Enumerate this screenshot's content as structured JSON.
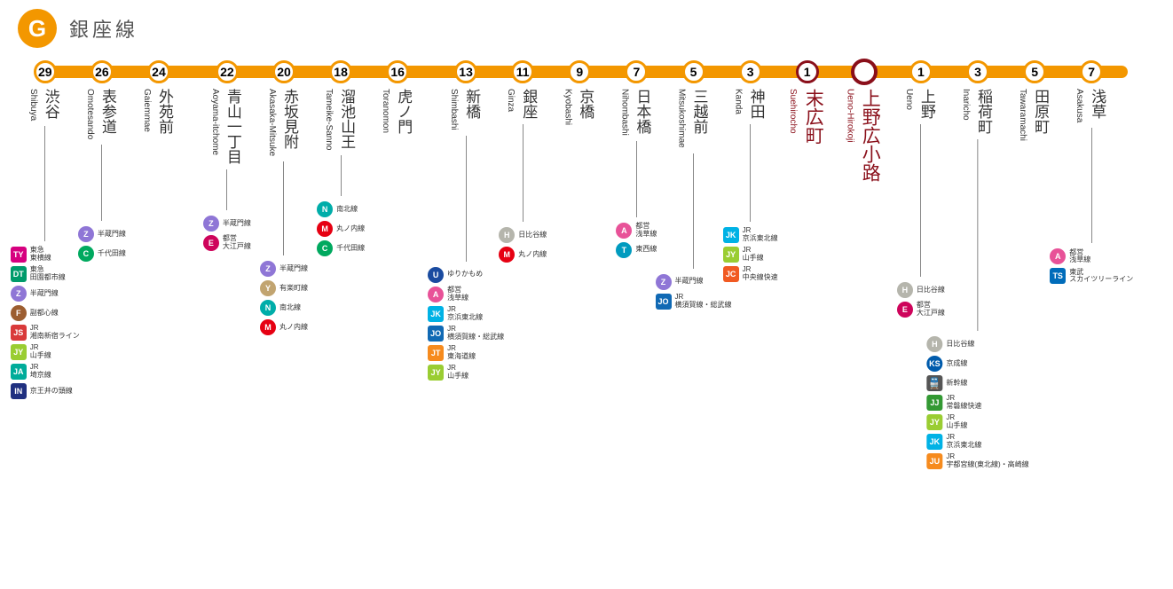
{
  "line": {
    "letter": "G",
    "name": "銀座線",
    "color": "#f39700",
    "highlight_border": "#8a0f1a"
  },
  "strip": {
    "left_pct": 2.4,
    "right_pct": 97.6
  },
  "stations": [
    {
      "num": "29",
      "x": 2.4,
      "ja": "渋谷",
      "en": "Shibuya",
      "gap": 130,
      "tf": [
        {
          "code": "TY",
          "shape": "square",
          "bg": "#d6007f",
          "label": "東急\n東横線"
        },
        {
          "code": "DT",
          "shape": "square",
          "bg": "#009b6b",
          "label": "東急\n田園都市線"
        },
        {
          "code": "Z",
          "shape": "circle",
          "bg": "#8f76d6",
          "label": "半蔵門線"
        },
        {
          "code": "F",
          "shape": "circle",
          "bg": "#9c5e31",
          "label": "副都心線"
        },
        {
          "code": "JS",
          "shape": "square",
          "bg": "#d93a3a",
          "label": "JR\n湘南新宿ライン"
        },
        {
          "code": "JY",
          "shape": "square",
          "bg": "#9acd32",
          "label": "JR\n山手線"
        },
        {
          "code": "JA",
          "shape": "square",
          "bg": "#00ac9a",
          "label": "JR\n埼京線"
        },
        {
          "code": "IN",
          "shape": "square",
          "bg": "#203080",
          "label": "京王井の頭線"
        }
      ]
    },
    {
      "num": "26",
      "x": 7.4,
      "ja": "表参道",
      "en": "Omotesando",
      "gap": 86,
      "tf": [
        {
          "code": "Z",
          "shape": "circle",
          "bg": "#8f76d6",
          "label": "半蔵門線"
        },
        {
          "code": "C",
          "shape": "circle",
          "bg": "#00a95f",
          "label": "千代田線"
        }
      ]
    },
    {
      "num": "24",
      "x": 12.4,
      "ja": "外苑前",
      "en": "Gaiemmae",
      "gap": 0,
      "tf": []
    },
    {
      "num": "22",
      "x": 18.4,
      "ja": "青山一丁目",
      "en": "Aoyama-itchome",
      "gap": 46,
      "tf": [
        {
          "code": "Z",
          "shape": "circle",
          "bg": "#8f76d6",
          "label": "半蔵門線"
        },
        {
          "code": "E",
          "shape": "circle",
          "bg": "#ce045b",
          "label": "都営\n大江戸線"
        }
      ]
    },
    {
      "num": "20",
      "x": 23.4,
      "ja": "赤坂見附",
      "en": "Akasaka-Mitsuke",
      "gap": 106,
      "tf": [
        {
          "code": "Z",
          "shape": "circle",
          "bg": "#8f76d6",
          "label": "半蔵門線"
        },
        {
          "code": "Y",
          "shape": "circle",
          "bg": "#c1a470",
          "label": "有楽町線"
        },
        {
          "code": "N",
          "shape": "circle",
          "bg": "#00ada9",
          "label": "南北線"
        },
        {
          "code": "M",
          "shape": "circle",
          "bg": "#e60012",
          "label": "丸ノ内線"
        }
      ]
    },
    {
      "num": "18",
      "x": 28.4,
      "ja": "溜池山王",
      "en": "Tameike-Sanno",
      "gap": 46,
      "tf": [
        {
          "code": "N",
          "shape": "circle",
          "bg": "#00ada9",
          "label": "南北線"
        },
        {
          "code": "M",
          "shape": "circle",
          "bg": "#e60012",
          "label": "丸ノ内線"
        },
        {
          "code": "C",
          "shape": "circle",
          "bg": "#00a95f",
          "label": "千代田線"
        }
      ]
    },
    {
      "num": "16",
      "x": 33.4,
      "ja": "虎ノ門",
      "en": "Toranomon",
      "gap": 0,
      "tf": []
    },
    {
      "num": "13",
      "x": 39.4,
      "ja": "新橋",
      "en": "Shimbashi",
      "gap": 142,
      "tf": [
        {
          "code": "U",
          "shape": "circle",
          "bg": "#1a4ba0",
          "label": "ゆりかもめ"
        },
        {
          "code": "A",
          "shape": "circle",
          "bg": "#e85298",
          "label": "都営\n浅草線"
        },
        {
          "code": "JK",
          "shape": "square",
          "bg": "#00b2e5",
          "label": "JR\n京浜東北線"
        },
        {
          "code": "JO",
          "shape": "square",
          "bg": "#1069b4",
          "label": "JR\n横須賀線・総武線"
        },
        {
          "code": "JT",
          "shape": "square",
          "bg": "#f68b1e",
          "label": "JR\n東海道線"
        },
        {
          "code": "JY",
          "shape": "square",
          "bg": "#9acd32",
          "label": "JR\n山手線"
        }
      ]
    },
    {
      "num": "11",
      "x": 44.4,
      "ja": "銀座",
      "en": "Ginza",
      "gap": 110,
      "tf": [
        {
          "code": "H",
          "shape": "circle",
          "bg": "#b5b5ac",
          "label": "日比谷線"
        },
        {
          "code": "M",
          "shape": "circle",
          "bg": "#e60012",
          "label": "丸ノ内線"
        }
      ]
    },
    {
      "num": "9",
      "x": 49.4,
      "ja": "京橋",
      "en": "Kyobashi",
      "gap": 0,
      "tf": []
    },
    {
      "num": "7",
      "x": 54.4,
      "ja": "日本橋",
      "en": "Nihombashi",
      "gap": 86,
      "tf": [
        {
          "code": "A",
          "shape": "circle",
          "bg": "#e85298",
          "label": "都営\n浅草線"
        },
        {
          "code": "T",
          "shape": "circle",
          "bg": "#009bbf",
          "label": "東西線"
        }
      ]
    },
    {
      "num": "5",
      "x": 59.4,
      "ja": "三越前",
      "en": "Mitsukoshimae",
      "gap": 130,
      "tf": [
        {
          "code": "Z",
          "shape": "circle",
          "bg": "#8f76d6",
          "label": "半蔵門線"
        },
        {
          "code": "JO",
          "shape": "square",
          "bg": "#1069b4",
          "label": "JR\n横須賀線・総武線"
        }
      ]
    },
    {
      "num": "3",
      "x": 64.4,
      "ja": "神田",
      "en": "Kanda",
      "gap": 110,
      "tf": [
        {
          "code": "JK",
          "shape": "square",
          "bg": "#00b2e5",
          "label": "JR\n京浜東北線"
        },
        {
          "code": "JY",
          "shape": "square",
          "bg": "#9acd32",
          "label": "JR\n山手線"
        },
        {
          "code": "JC",
          "shape": "square",
          "bg": "#f15a22",
          "label": "JR\n中央線快速"
        }
      ]
    },
    {
      "num": "1",
      "x": 69.4,
      "ja": "末広町",
      "en": "Suehirocho",
      "gap": 0,
      "tf": [],
      "hi": true
    },
    {
      "num": "",
      "x": 74.4,
      "ja": "上野広小路",
      "en": "Ueno-Hirokoji",
      "gap": 0,
      "tf": [],
      "hi": true,
      "big": true
    },
    {
      "num": "1",
      "x": 79.4,
      "ja": "上野",
      "en": "Ueno",
      "gap": 172,
      "tf": [
        {
          "code": "H",
          "shape": "circle",
          "bg": "#b5b5ac",
          "label": "日比谷線"
        },
        {
          "code": "E",
          "shape": "circle",
          "bg": "#ce045b",
          "label": "都営\n大江戸線"
        }
      ]
    },
    {
      "num": "3",
      "x": 84.4,
      "ja": "稲荷町",
      "en": "Inaricho",
      "gap": 216,
      "tf": [
        {
          "code": "H",
          "shape": "circle",
          "bg": "#b5b5ac",
          "label": "日比谷線"
        },
        {
          "code": "KS",
          "shape": "circle",
          "bg": "#005bac",
          "label": "京成線"
        },
        {
          "code": "🚆",
          "shape": "icon",
          "bg": "#555",
          "label": "新幹線"
        },
        {
          "code": "JJ",
          "shape": "square",
          "bg": "#339933",
          "label": "JR\n常磐線快速"
        },
        {
          "code": "JY",
          "shape": "square",
          "bg": "#9acd32",
          "label": "JR\n山手線"
        },
        {
          "code": "JK",
          "shape": "square",
          "bg": "#00b2e5",
          "label": "JR\n京浜東北線"
        },
        {
          "code": "JU",
          "shape": "square",
          "bg": "#f68b1e",
          "label": "JR\n宇都宮線(東北線)・高崎線"
        }
      ]
    },
    {
      "num": "5",
      "x": 89.4,
      "ja": "田原町",
      "en": "Tawaramachi",
      "gap": 0,
      "tf": []
    },
    {
      "num": "7",
      "x": 94.4,
      "ja": "浅草",
      "en": "Asakusa",
      "gap": 130,
      "tf": [
        {
          "code": "A",
          "shape": "circle",
          "bg": "#e85298",
          "label": "都営\n浅草線"
        },
        {
          "code": "TS",
          "shape": "square",
          "bg": "#006cba",
          "label": "東武\nスカイツリーライン"
        }
      ]
    }
  ]
}
